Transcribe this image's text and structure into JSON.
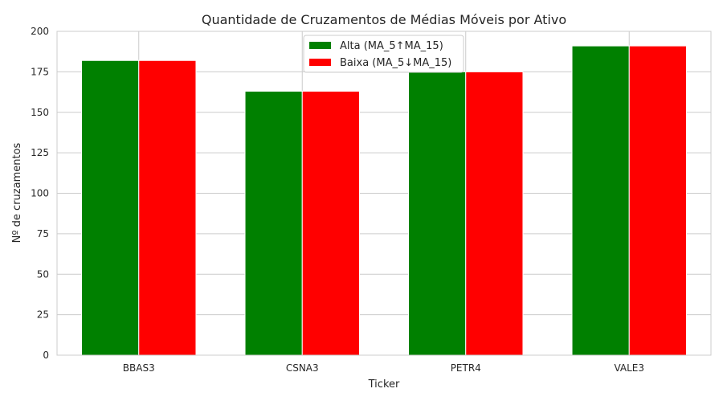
{
  "chart_data": {
    "type": "bar",
    "title": "Quantidade de Cruzamentos de Médias Móveis por Ativo",
    "xlabel": "Ticker",
    "ylabel": "Nº de cruzamentos",
    "categories": [
      "BBAS3",
      "CSNA3",
      "PETR4",
      "VALE3"
    ],
    "series": [
      {
        "name": "Alta (MA_5↑MA_15)",
        "color": "#008000",
        "values": [
          182,
          163,
          175,
          191
        ]
      },
      {
        "name": "Baixa (MA_5↓MA_15)",
        "color": "#ff0000",
        "values": [
          182,
          163,
          175,
          191
        ]
      }
    ],
    "ylim": [
      0,
      200
    ],
    "yticks": [
      0,
      25,
      50,
      75,
      100,
      125,
      150,
      175,
      200
    ],
    "grid": true,
    "legend_position": "top-center"
  }
}
